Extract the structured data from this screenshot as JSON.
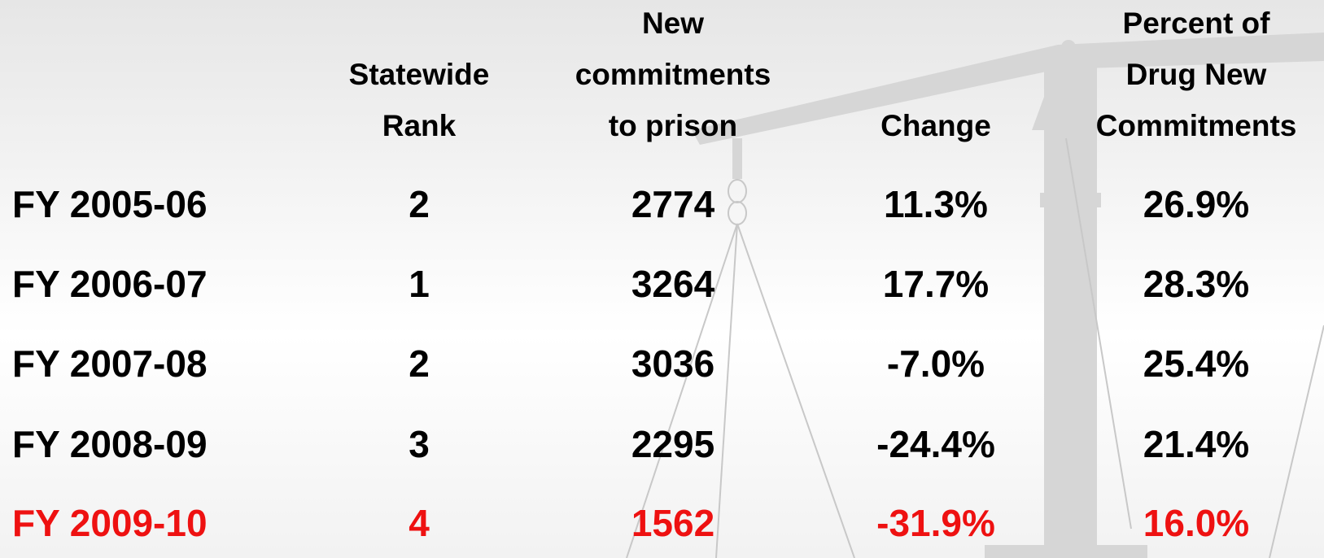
{
  "table": {
    "columns": [
      {
        "lines": [
          "Statewide",
          "Rank"
        ]
      },
      {
        "lines": [
          "New",
          "commitments",
          "to prison"
        ]
      },
      {
        "lines": [
          "Change"
        ]
      },
      {
        "lines": [
          "Percent of",
          "Drug New",
          "Commitments"
        ]
      }
    ],
    "rows": [
      [
        "FY 2005-06",
        "2",
        "2774",
        "11.3%",
        "26.9%"
      ],
      [
        "FY 2006-07",
        "1",
        "3264",
        "17.7%",
        "28.3%"
      ],
      [
        "FY 2007-08",
        "2",
        "3036",
        "-7.0%",
        "25.4%"
      ],
      [
        "FY 2008-09",
        "3",
        "2295",
        "-24.4%",
        "21.4%"
      ],
      [
        "FY 2009-10",
        "4",
        "1562",
        "-31.9%",
        "16.0%"
      ]
    ],
    "highlight_row": 4,
    "highlight_color": "#ee1111",
    "text_color": "#000000"
  }
}
